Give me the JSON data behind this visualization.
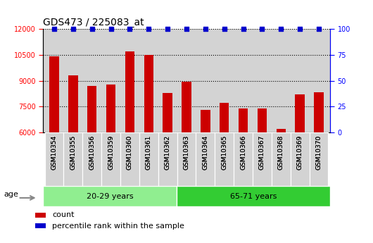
{
  "title": "GDS473 / 225083_at",
  "categories": [
    "GSM10354",
    "GSM10355",
    "GSM10356",
    "GSM10359",
    "GSM10360",
    "GSM10361",
    "GSM10362",
    "GSM10363",
    "GSM10364",
    "GSM10365",
    "GSM10366",
    "GSM10367",
    "GSM10368",
    "GSM10369",
    "GSM10370"
  ],
  "counts": [
    10400,
    9300,
    8700,
    8800,
    10700,
    10500,
    8300,
    8950,
    7300,
    7700,
    7400,
    7400,
    6200,
    8200,
    8350
  ],
  "percentile": [
    100,
    100,
    100,
    100,
    100,
    100,
    100,
    100,
    100,
    100,
    100,
    100,
    100,
    100,
    100
  ],
  "bar_color": "#cc0000",
  "dot_color": "#0000cc",
  "ylim_left": [
    6000,
    12000
  ],
  "ylim_right": [
    0,
    100
  ],
  "yticks_left": [
    6000,
    7500,
    9000,
    10500,
    12000
  ],
  "yticks_right": [
    0,
    25,
    50,
    75,
    100
  ],
  "group1_label": "20-29 years",
  "group2_label": "65-71 years",
  "group1_count": 7,
  "group2_count": 8,
  "group1_color": "#90EE90",
  "group2_color": "#33cc33",
  "age_label": "age",
  "legend_count_label": "count",
  "legend_percentile_label": "percentile rank within the sample",
  "plot_area_bg": "#d3d3d3",
  "fig_bg": "#ffffff",
  "title_fontsize": 10,
  "tick_fontsize": 7,
  "bar_width": 0.5
}
